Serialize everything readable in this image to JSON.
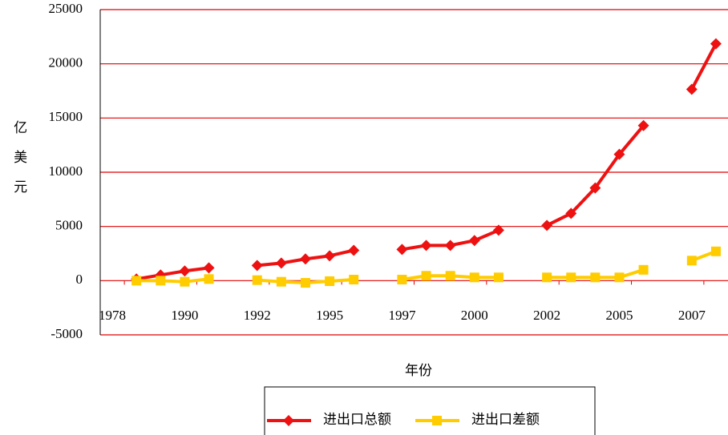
{
  "chart_data": {
    "type": "line",
    "ylabel": "亿美元",
    "xlabel": "年份",
    "categories": [
      "1978",
      null,
      null,
      "1990",
      null,
      null,
      "1992",
      null,
      null,
      "1995",
      null,
      null,
      "1997",
      null,
      null,
      "2000",
      null,
      null,
      "2002",
      null,
      null,
      "2005",
      null,
      null,
      "2007",
      null
    ],
    "series": [
      {
        "name": "进出口总额",
        "color": "#ee1111",
        "marker": "diamond",
        "values": [
          null,
          150,
          520,
          890,
          1180,
          null,
          1400,
          1620,
          2000,
          2290,
          2800,
          null,
          2880,
          3250,
          3250,
          3700,
          4650,
          null,
          5100,
          6200,
          8550,
          11650,
          14300,
          null,
          17650,
          21850
        ]
      },
      {
        "name": "进出口差额",
        "color": "#ffcc00",
        "marker": "square",
        "values": [
          null,
          0,
          0,
          -100,
          150,
          null,
          50,
          -100,
          -200,
          -50,
          100,
          null,
          100,
          450,
          450,
          300,
          300,
          null,
          300,
          300,
          300,
          300,
          1000,
          null,
          1850,
          2700
        ]
      }
    ],
    "ylim": [
      -5000,
      25000
    ],
    "yticks": [
      -5000,
      0,
      5000,
      10000,
      15000,
      20000,
      25000
    ],
    "grid": true,
    "legend": "bottom"
  }
}
